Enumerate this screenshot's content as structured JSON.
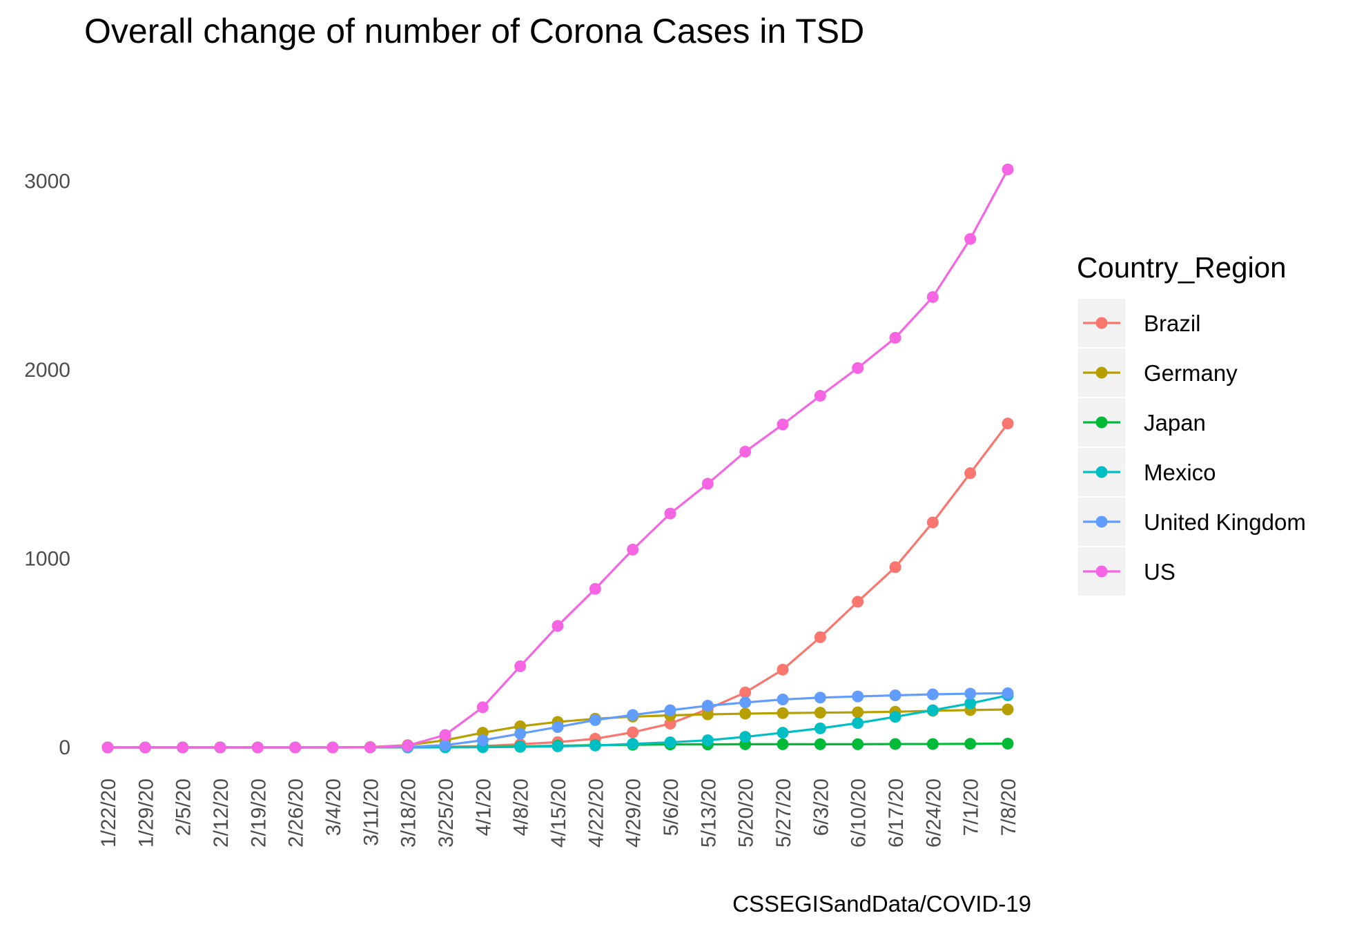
{
  "chart_data": {
    "type": "line",
    "title": "Overall change of number of Corona Cases in TSD",
    "caption": "CSSEGISandData/COVID-19",
    "xlabel": "",
    "ylabel": "",
    "ylim": [
      -150,
      3450
    ],
    "y_ticks": [
      0,
      1000,
      2000,
      3000
    ],
    "grid": false,
    "legend_title": "Country_Region",
    "legend_position": "right",
    "categories": [
      "1/22/20",
      "1/29/20",
      "2/5/20",
      "2/12/20",
      "2/19/20",
      "2/26/20",
      "3/4/20",
      "3/11/20",
      "3/18/20",
      "3/25/20",
      "4/1/20",
      "4/8/20",
      "4/15/20",
      "4/22/20",
      "4/29/20",
      "5/6/20",
      "5/13/20",
      "5/20/20",
      "5/27/20",
      "6/3/20",
      "6/10/20",
      "6/17/20",
      "6/24/20",
      "7/1/20",
      "7/8/20"
    ],
    "series": [
      {
        "name": "Brazil",
        "color": "#F8766D",
        "values": [
          0,
          0,
          0,
          0,
          0,
          0,
          0,
          0,
          0.3,
          3,
          7,
          17,
          28,
          46,
          80,
          126,
          203,
          291,
          412,
          584,
          772,
          955,
          1192,
          1453,
          1716
        ]
      },
      {
        "name": "Germany",
        "color": "#B79F00",
        "values": [
          0,
          0,
          0,
          0,
          0,
          0,
          0.2,
          2,
          12,
          38,
          78,
          112,
          135,
          152,
          163,
          170,
          175,
          179,
          182,
          184,
          186,
          189,
          194,
          198,
          201
        ]
      },
      {
        "name": "Japan",
        "color": "#00BA38",
        "values": [
          0,
          0,
          0,
          0,
          0,
          0,
          0,
          0.6,
          1,
          2,
          3,
          5,
          9,
          12,
          14,
          16,
          16,
          17,
          17,
          17,
          17,
          18,
          18,
          19,
          20
        ]
      },
      {
        "name": "Mexico",
        "color": "#00BFC4",
        "values": [
          null,
          null,
          null,
          null,
          null,
          null,
          null,
          null,
          0,
          0.5,
          1.2,
          3,
          6,
          10,
          19,
          27,
          38,
          56,
          78,
          101,
          129,
          162,
          197,
          233,
          276
        ]
      },
      {
        "name": "United Kingdom",
        "color": "#619CFF",
        "values": [
          0,
          0,
          0,
          0,
          0,
          0,
          0,
          0.5,
          2.5,
          12,
          38,
          73,
          108,
          145,
          172,
          197,
          221,
          238,
          254,
          264,
          270,
          276,
          281,
          285,
          287
        ]
      },
      {
        "name": "US",
        "color": "#F564E3",
        "values": [
          0,
          0,
          0,
          0,
          0,
          0,
          0.2,
          1,
          10,
          66,
          213,
          430,
          644,
          840,
          1048,
          1239,
          1397,
          1567,
          1711,
          1863,
          2010,
          2170,
          2386,
          2694,
          3062
        ]
      }
    ]
  }
}
